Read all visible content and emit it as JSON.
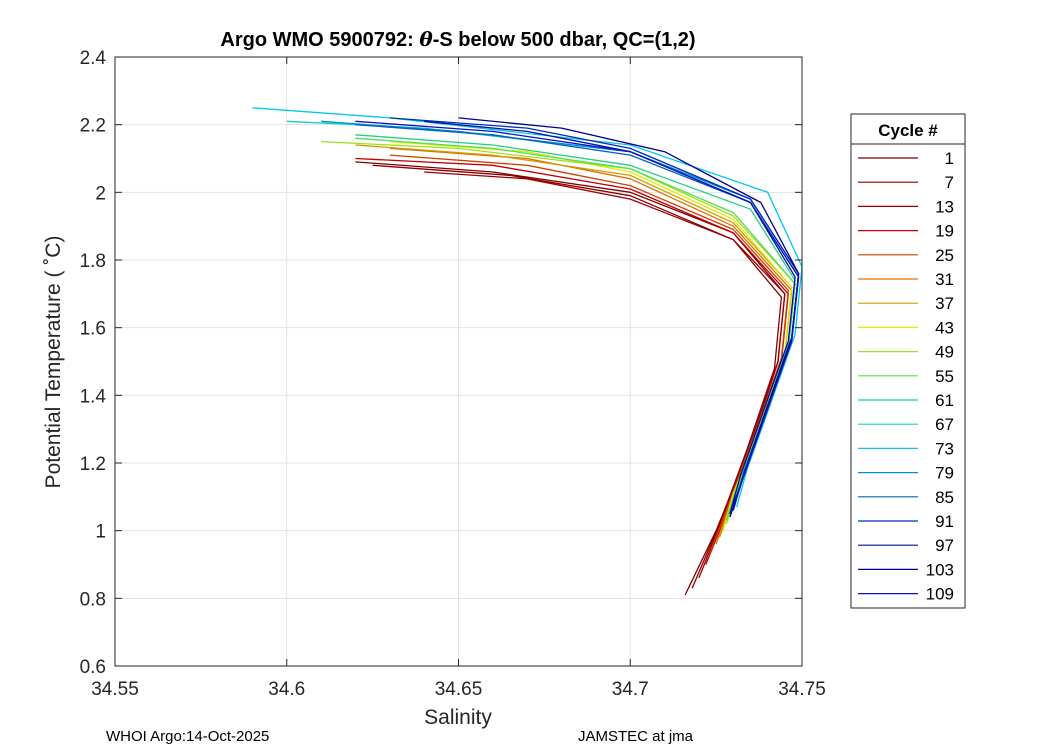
{
  "chart_data": {
    "type": "line",
    "title_parts": [
      "Argo WMO 5900792: ",
      "θ",
      "-S below 500 dbar,  QC=(1,2)"
    ],
    "xlabel": "Salinity",
    "ylabel": "Potential Temperature ( ˚C)",
    "xlim": [
      34.55,
      34.75
    ],
    "ylim": [
      0.6,
      2.4
    ],
    "x_ticks": [
      34.55,
      34.6,
      34.65,
      34.7,
      34.75
    ],
    "x_tick_labels": [
      "34.55",
      "34.6",
      "34.65",
      "34.7",
      "34.75"
    ],
    "y_ticks": [
      0.6,
      0.8,
      1.0,
      1.2,
      1.4,
      1.6,
      1.8,
      2.0,
      2.2,
      2.4
    ],
    "y_tick_labels": [
      "0.6",
      "0.8",
      "1",
      "1.2",
      "1.4",
      "1.6",
      "1.8",
      "2",
      "2.2",
      "2.4"
    ],
    "grid": true,
    "legend_title": "Cycle #",
    "legend_position": "right, outside plot",
    "series": [
      {
        "name": "1",
        "color": "#800000",
        "values": [
          [
            34.62,
            2.09
          ],
          [
            34.66,
            2.06
          ],
          [
            34.7,
            2.0
          ],
          [
            34.73,
            1.88
          ],
          [
            34.745,
            1.7
          ],
          [
            34.743,
            1.5
          ],
          [
            34.735,
            1.25
          ],
          [
            34.725,
            1.0
          ],
          [
            34.716,
            0.81
          ]
        ]
      },
      {
        "name": "7",
        "color": "#8b0000",
        "values": [
          [
            34.625,
            2.08
          ],
          [
            34.665,
            2.05
          ],
          [
            34.7,
            1.99
          ],
          [
            34.73,
            1.86
          ],
          [
            34.744,
            1.69
          ],
          [
            34.742,
            1.48
          ],
          [
            34.734,
            1.24
          ],
          [
            34.726,
            1.02
          ],
          [
            34.718,
            0.83
          ]
        ]
      },
      {
        "name": "13",
        "color": "#9a0000",
        "values": [
          [
            34.64,
            2.06
          ],
          [
            34.67,
            2.04
          ],
          [
            34.7,
            1.98
          ],
          [
            34.73,
            1.86
          ],
          [
            34.745,
            1.7
          ],
          [
            34.743,
            1.5
          ],
          [
            34.735,
            1.26
          ],
          [
            34.727,
            1.04
          ],
          [
            34.72,
            0.86
          ]
        ]
      },
      {
        "name": "19",
        "color": "#c00000",
        "values": [
          [
            34.62,
            2.1
          ],
          [
            34.66,
            2.08
          ],
          [
            34.7,
            2.01
          ],
          [
            34.73,
            1.88
          ],
          [
            34.746,
            1.7
          ],
          [
            34.744,
            1.5
          ],
          [
            34.736,
            1.27
          ],
          [
            34.728,
            1.05
          ],
          [
            34.722,
            0.9
          ]
        ]
      },
      {
        "name": "25",
        "color": "#d04000",
        "values": [
          [
            34.63,
            2.11
          ],
          [
            34.67,
            2.08
          ],
          [
            34.7,
            2.02
          ],
          [
            34.73,
            1.89
          ],
          [
            34.746,
            1.71
          ],
          [
            34.744,
            1.51
          ],
          [
            34.736,
            1.28
          ],
          [
            34.728,
            1.06
          ],
          [
            34.723,
            0.93
          ]
        ]
      },
      {
        "name": "31",
        "color": "#e07000",
        "values": [
          [
            34.63,
            2.13
          ],
          [
            34.67,
            2.1
          ],
          [
            34.7,
            2.04
          ],
          [
            34.73,
            1.9
          ],
          [
            34.747,
            1.71
          ],
          [
            34.745,
            1.52
          ],
          [
            34.737,
            1.29
          ],
          [
            34.729,
            1.08
          ],
          [
            34.725,
            0.96
          ]
        ]
      },
      {
        "name": "37",
        "color": "#c8a000",
        "values": [
          [
            34.62,
            2.14
          ],
          [
            34.66,
            2.11
          ],
          [
            34.7,
            2.05
          ],
          [
            34.73,
            1.91
          ],
          [
            34.747,
            1.72
          ],
          [
            34.745,
            1.52
          ],
          [
            34.737,
            1.3
          ],
          [
            34.73,
            1.1
          ],
          [
            34.726,
            0.98
          ]
        ]
      },
      {
        "name": "43",
        "color": "#e8e800",
        "values": [
          [
            34.63,
            2.15
          ],
          [
            34.67,
            2.12
          ],
          [
            34.7,
            2.06
          ],
          [
            34.73,
            1.92
          ],
          [
            34.747,
            1.72
          ],
          [
            34.745,
            1.53
          ],
          [
            34.738,
            1.31
          ],
          [
            34.73,
            1.11
          ],
          [
            34.727,
            1.0
          ]
        ]
      },
      {
        "name": "49",
        "color": "#a0e020",
        "values": [
          [
            34.61,
            2.15
          ],
          [
            34.65,
            2.13
          ],
          [
            34.7,
            2.07
          ],
          [
            34.73,
            1.93
          ],
          [
            34.748,
            1.73
          ],
          [
            34.746,
            1.53
          ],
          [
            34.738,
            1.32
          ],
          [
            34.731,
            1.12
          ],
          [
            34.728,
            1.02
          ]
        ]
      },
      {
        "name": "55",
        "color": "#50e050",
        "values": [
          [
            34.62,
            2.16
          ],
          [
            34.66,
            2.13
          ],
          [
            34.7,
            2.07
          ],
          [
            34.73,
            1.94
          ],
          [
            34.748,
            1.73
          ],
          [
            34.746,
            1.54
          ],
          [
            34.739,
            1.33
          ],
          [
            34.731,
            1.13
          ],
          [
            34.728,
            1.03
          ]
        ]
      },
      {
        "name": "61",
        "color": "#20d080",
        "values": [
          [
            34.62,
            2.17
          ],
          [
            34.66,
            2.14
          ],
          [
            34.7,
            2.08
          ],
          [
            34.735,
            1.95
          ],
          [
            34.748,
            1.74
          ],
          [
            34.746,
            1.55
          ],
          [
            34.739,
            1.34
          ],
          [
            34.732,
            1.14
          ],
          [
            34.729,
            1.04
          ]
        ]
      },
      {
        "name": "67",
        "color": "#10d0c0",
        "values": [
          [
            34.6,
            2.21
          ],
          [
            34.64,
            2.19
          ],
          [
            34.7,
            2.12
          ],
          [
            34.735,
            1.98
          ],
          [
            34.749,
            1.76
          ],
          [
            34.747,
            1.56
          ],
          [
            34.74,
            1.36
          ],
          [
            34.733,
            1.16
          ],
          [
            34.73,
            1.06
          ]
        ]
      },
      {
        "name": "73",
        "color": "#00c8f0",
        "values": [
          [
            34.59,
            2.25
          ],
          [
            34.63,
            2.22
          ],
          [
            34.7,
            2.14
          ],
          [
            34.74,
            2.0
          ],
          [
            34.75,
            1.78
          ],
          [
            34.748,
            1.58
          ],
          [
            34.741,
            1.38
          ],
          [
            34.734,
            1.18
          ],
          [
            34.731,
            1.07
          ]
        ]
      },
      {
        "name": "79",
        "color": "#0090d0",
        "values": [
          [
            34.61,
            2.21
          ],
          [
            34.65,
            2.18
          ],
          [
            34.7,
            2.12
          ],
          [
            34.735,
            1.98
          ],
          [
            34.749,
            1.76
          ],
          [
            34.747,
            1.57
          ],
          [
            34.74,
            1.37
          ],
          [
            34.733,
            1.17
          ],
          [
            34.73,
            1.06
          ]
        ]
      },
      {
        "name": "85",
        "color": "#0060c0",
        "values": [
          [
            34.62,
            2.2
          ],
          [
            34.66,
            2.17
          ],
          [
            34.7,
            2.11
          ],
          [
            34.735,
            1.97
          ],
          [
            34.749,
            1.75
          ],
          [
            34.747,
            1.56
          ],
          [
            34.74,
            1.36
          ],
          [
            34.733,
            1.16
          ],
          [
            34.729,
            1.05
          ]
        ]
      },
      {
        "name": "91",
        "color": "#0030b0",
        "values": [
          [
            34.63,
            2.22
          ],
          [
            34.67,
            2.19
          ],
          [
            34.7,
            2.13
          ],
          [
            34.735,
            1.98
          ],
          [
            34.749,
            1.76
          ],
          [
            34.747,
            1.57
          ],
          [
            34.74,
            1.37
          ],
          [
            34.733,
            1.17
          ],
          [
            34.73,
            1.06
          ]
        ]
      },
      {
        "name": "97",
        "color": "#0010a0",
        "values": [
          [
            34.64,
            2.21
          ],
          [
            34.67,
            2.18
          ],
          [
            34.7,
            2.12
          ],
          [
            34.735,
            1.97
          ],
          [
            34.748,
            1.75
          ],
          [
            34.746,
            1.56
          ],
          [
            34.739,
            1.36
          ],
          [
            34.732,
            1.16
          ],
          [
            34.729,
            1.05
          ]
        ]
      },
      {
        "name": "103",
        "color": "#000090",
        "values": [
          [
            34.65,
            2.22
          ],
          [
            34.68,
            2.19
          ],
          [
            34.71,
            2.12
          ],
          [
            34.738,
            1.97
          ],
          [
            34.749,
            1.76
          ],
          [
            34.747,
            1.57
          ],
          [
            34.74,
            1.37
          ],
          [
            34.733,
            1.16
          ],
          [
            34.729,
            1.04
          ]
        ]
      },
      {
        "name": "109",
        "color": "#1010c0",
        "values": [
          [
            34.62,
            2.21
          ],
          [
            34.66,
            2.18
          ],
          [
            34.7,
            2.12
          ],
          [
            34.735,
            1.97
          ],
          [
            34.749,
            1.75
          ],
          [
            34.747,
            1.56
          ],
          [
            34.74,
            1.36
          ],
          [
            34.733,
            1.16
          ],
          [
            34.729,
            1.05
          ]
        ]
      }
    ]
  },
  "footer": {
    "left": "WHOI Argo:14-Oct-2025",
    "right": "JAMSTEC at jma"
  }
}
